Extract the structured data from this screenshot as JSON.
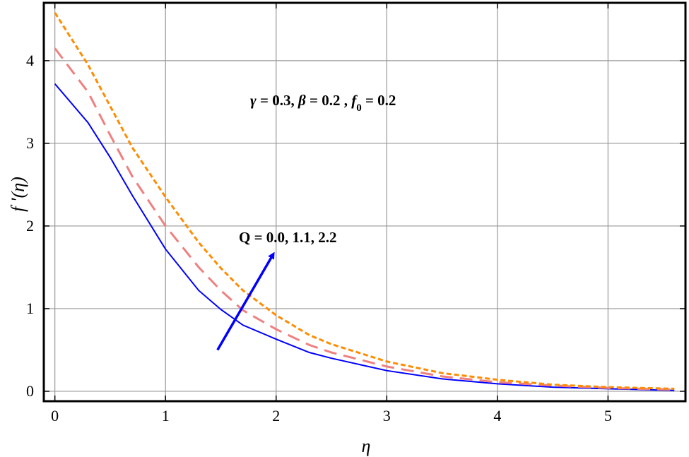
{
  "chart_data": {
    "type": "line",
    "xlabel": "η",
    "ylabel": "f ′(η)",
    "xlim": [
      -0.1,
      5.7
    ],
    "ylim": [
      -0.12,
      4.7
    ],
    "grid": true,
    "x_ticks": [
      0,
      1,
      2,
      3,
      4,
      5
    ],
    "y_ticks": [
      0,
      1,
      2,
      3,
      4
    ],
    "annotations": [
      {
        "id": "params",
        "parts": [
          {
            "t": "γ",
            "i": true
          },
          {
            "t": " = 0.3, "
          },
          {
            "t": "β",
            "i": true
          },
          {
            "t": " = 0.2 , "
          },
          {
            "t": "f",
            "i": true
          },
          {
            "t": "0",
            "sub": true
          },
          {
            "t": " = 0.2"
          }
        ]
      },
      {
        "id": "q-values",
        "text": "Q = 0.0, 1.1, 2.2"
      }
    ],
    "arrow": {
      "from": [
        1.47,
        0.5
      ],
      "to": [
        1.97,
        1.65
      ],
      "color": "#0000ff"
    },
    "series": [
      {
        "Q": "0.0",
        "color": "#0000ff",
        "dash": "solid",
        "x": [
          0,
          0.3,
          0.5,
          0.7,
          1.0,
          1.3,
          1.5,
          1.7,
          2.0,
          2.3,
          2.5,
          3.0,
          3.5,
          4.0,
          4.5,
          5.0,
          5.6
        ],
        "y": [
          3.72,
          3.25,
          2.83,
          2.37,
          1.72,
          1.22,
          0.99,
          0.8,
          0.63,
          0.47,
          0.4,
          0.25,
          0.15,
          0.09,
          0.05,
          0.03,
          0.01
        ]
      },
      {
        "Q": "1.1",
        "color": "#f08080",
        "dash": "long",
        "x": [
          0,
          0.3,
          0.5,
          0.7,
          1.0,
          1.3,
          1.5,
          1.7,
          2.0,
          2.3,
          2.5,
          3.0,
          3.5,
          4.0,
          4.5,
          5.0,
          5.6
        ],
        "y": [
          4.15,
          3.62,
          3.1,
          2.6,
          2.0,
          1.5,
          1.22,
          0.98,
          0.75,
          0.56,
          0.47,
          0.3,
          0.18,
          0.11,
          0.07,
          0.04,
          0.02
        ]
      },
      {
        "Q": "2.2",
        "color": "#ff8c00",
        "dash": "short",
        "x": [
          0,
          0.3,
          0.5,
          0.7,
          1.0,
          1.3,
          1.5,
          1.7,
          2.0,
          2.3,
          2.5,
          3.0,
          3.5,
          4.0,
          4.5,
          5.0,
          5.6
        ],
        "y": [
          4.58,
          3.95,
          3.45,
          2.95,
          2.35,
          1.8,
          1.49,
          1.22,
          0.92,
          0.68,
          0.57,
          0.36,
          0.22,
          0.14,
          0.08,
          0.05,
          0.03
        ]
      }
    ]
  }
}
